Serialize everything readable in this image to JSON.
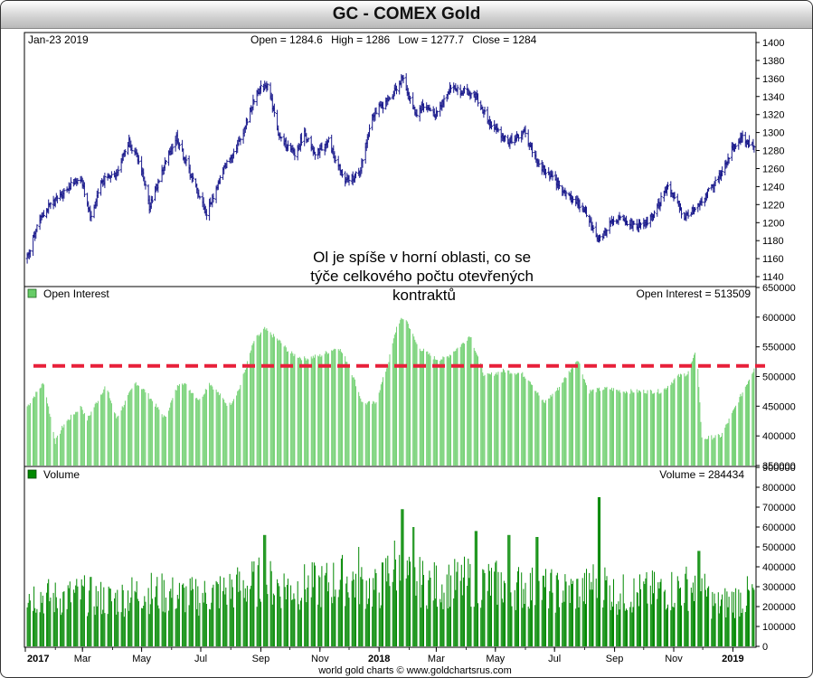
{
  "title": "GC - COMEX Gold",
  "footer": "world gold charts © www.goldchartsrus.com",
  "annotation": "Ol je spíše v horní oblasti, co se týče celkového počtu otevřených kontraktů",
  "annotation_lines": [
    "Ol je spíše v horní oblasti, co se",
    "týče celkového počtu otevřených",
    "kontraktů"
  ],
  "colors": {
    "price_bars": "#1a1a8c",
    "open_interest": "#66cc66",
    "volume": "#008800",
    "dashed_line": "#e8203a"
  },
  "chart_data": [
    {
      "type": "ohlc",
      "panel": "price",
      "date_label": "Jan-23  2019",
      "readout": {
        "open_label": "Open",
        "open": 1284.6,
        "high_label": "High",
        "high": 1286,
        "low_label": "Low",
        "low": 1277.7,
        "close_label": "Close",
        "close": 1284
      },
      "ylim": [
        1130,
        1410
      ],
      "yticks": [
        1140,
        1160,
        1180,
        1200,
        1220,
        1240,
        1260,
        1280,
        1300,
        1320,
        1340,
        1360,
        1380,
        1400
      ],
      "y_axis_side": "right",
      "grid": false,
      "x": [
        "2017-01-03",
        "2017-01-15",
        "2017-02-01",
        "2017-02-15",
        "2017-02-27",
        "2017-03-10",
        "2017-03-20",
        "2017-04-05",
        "2017-04-18",
        "2017-05-01",
        "2017-05-09",
        "2017-05-25",
        "2017-06-06",
        "2017-06-20",
        "2017-07-07",
        "2017-07-25",
        "2017-08-10",
        "2017-08-28",
        "2017-09-08",
        "2017-09-20",
        "2017-10-06",
        "2017-10-16",
        "2017-10-26",
        "2017-11-10",
        "2017-11-27",
        "2017-12-12",
        "2017-12-25",
        "2018-01-10",
        "2018-01-25",
        "2018-02-08",
        "2018-02-15",
        "2018-03-01",
        "2018-03-15",
        "2018-04-01",
        "2018-04-11",
        "2018-04-25",
        "2018-05-15",
        "2018-05-31",
        "2018-06-14",
        "2018-06-28",
        "2018-07-15",
        "2018-08-01",
        "2018-08-16",
        "2018-08-31",
        "2018-09-15",
        "2018-10-01",
        "2018-10-11",
        "2018-10-25",
        "2018-11-13",
        "2018-11-30",
        "2018-12-15",
        "2018-12-31",
        "2019-01-10",
        "2019-01-23"
      ],
      "close": [
        1160,
        1205,
        1225,
        1240,
        1250,
        1205,
        1245,
        1255,
        1290,
        1260,
        1218,
        1265,
        1295,
        1255,
        1210,
        1260,
        1290,
        1345,
        1355,
        1295,
        1275,
        1300,
        1275,
        1290,
        1245,
        1255,
        1320,
        1335,
        1360,
        1320,
        1330,
        1320,
        1350,
        1345,
        1340,
        1310,
        1290,
        1300,
        1265,
        1250,
        1230,
        1215,
        1180,
        1205,
        1200,
        1195,
        1210,
        1240,
        1205,
        1225,
        1245,
        1280,
        1295,
        1284
      ],
      "high": [
        1170,
        1212,
        1232,
        1246,
        1260,
        1214,
        1254,
        1264,
        1298,
        1270,
        1226,
        1274,
        1303,
        1262,
        1220,
        1268,
        1298,
        1357,
        1362,
        1305,
        1285,
        1306,
        1283,
        1298,
        1255,
        1262,
        1328,
        1345,
        1366,
        1330,
        1338,
        1330,
        1358,
        1352,
        1348,
        1320,
        1298,
        1307,
        1272,
        1260,
        1240,
        1225,
        1192,
        1214,
        1210,
        1202,
        1220,
        1248,
        1214,
        1232,
        1254,
        1290,
        1302,
        1286
      ],
      "low": [
        1150,
        1196,
        1216,
        1232,
        1240,
        1196,
        1236,
        1246,
        1280,
        1252,
        1208,
        1256,
        1286,
        1245,
        1200,
        1250,
        1280,
        1334,
        1344,
        1284,
        1265,
        1290,
        1265,
        1282,
        1236,
        1246,
        1310,
        1324,
        1350,
        1310,
        1320,
        1310,
        1340,
        1336,
        1330,
        1300,
        1280,
        1292,
        1256,
        1240,
        1220,
        1205,
        1162,
        1195,
        1190,
        1186,
        1200,
        1230,
        1196,
        1215,
        1236,
        1270,
        1285,
        1277.7
      ]
    },
    {
      "type": "bar",
      "panel": "open_interest",
      "label": "Open Interest",
      "readout_label": "Open Interest",
      "readout_value": 513509,
      "ylim": [
        350000,
        650000
      ],
      "yticks": [
        350000,
        400000,
        450000,
        500000,
        550000,
        600000,
        650000
      ],
      "y_axis_side": "right",
      "x": [
        "2017-01-03",
        "2017-01-20",
        "2017-02-01",
        "2017-02-10",
        "2017-02-28",
        "2017-03-05",
        "2017-03-25",
        "2017-04-05",
        "2017-04-25",
        "2017-05-05",
        "2017-05-25",
        "2017-06-10",
        "2017-06-30",
        "2017-07-10",
        "2017-07-30",
        "2017-08-10",
        "2017-08-25",
        "2017-09-05",
        "2017-09-20",
        "2017-10-01",
        "2017-10-15",
        "2017-11-01",
        "2017-11-20",
        "2017-12-01",
        "2017-12-15",
        "2017-12-28",
        "2018-01-10",
        "2018-01-20",
        "2018-01-28",
        "2018-02-10",
        "2018-02-28",
        "2018-03-10",
        "2018-03-28",
        "2018-04-05",
        "2018-04-20",
        "2018-05-10",
        "2018-05-28",
        "2018-06-05",
        "2018-06-20",
        "2018-07-05",
        "2018-07-25",
        "2018-08-05",
        "2018-08-25",
        "2018-09-10",
        "2018-10-01",
        "2018-10-20",
        "2018-11-05",
        "2018-11-15",
        "2018-11-25",
        "2018-11-30",
        "2018-12-20",
        "2019-01-10",
        "2019-01-23"
      ],
      "values": [
        450000,
        490000,
        390000,
        420000,
        450000,
        425000,
        485000,
        430000,
        490000,
        475000,
        430000,
        495000,
        460000,
        490000,
        450000,
        480000,
        560000,
        580000,
        560000,
        540000,
        530000,
        535000,
        550000,
        520000,
        455000,
        455000,
        520000,
        590000,
        600000,
        550000,
        530000,
        530000,
        555000,
        570000,
        500000,
        510000,
        505000,
        495000,
        455000,
        480000,
        530000,
        475000,
        480000,
        475000,
        475000,
        475000,
        500000,
        505000,
        545000,
        395000,
        400000,
        470000,
        513509
      ],
      "reference_line": {
        "value": 518000,
        "style": "dashed"
      }
    },
    {
      "type": "bar",
      "panel": "volume",
      "label": "Volume",
      "readout_label": "Volume",
      "readout_value": 284434,
      "ylim": [
        0,
        900000
      ],
      "yticks": [
        0,
        100000,
        200000,
        300000,
        400000,
        500000,
        600000,
        700000,
        800000,
        900000
      ],
      "y_axis_side": "right",
      "x": [
        "2017-01-03",
        "2017-02-01",
        "2017-03-01",
        "2017-04-01",
        "2017-05-01",
        "2017-06-01",
        "2017-07-01",
        "2017-08-01",
        "2017-08-31",
        "2017-10-01",
        "2017-11-01",
        "2017-12-01",
        "2017-12-31",
        "2018-01-15",
        "2018-02-01",
        "2018-03-01",
        "2018-04-01",
        "2018-05-01",
        "2018-06-01",
        "2018-07-01",
        "2018-08-01",
        "2018-08-15",
        "2018-09-01",
        "2018-10-01",
        "2018-11-01",
        "2018-11-25",
        "2018-12-15",
        "2019-01-01",
        "2019-01-23"
      ],
      "values": [
        290000,
        260000,
        280000,
        250000,
        300000,
        280000,
        270000,
        310000,
        350000,
        320000,
        330000,
        370000,
        300000,
        450000,
        360000,
        330000,
        350000,
        340000,
        320000,
        300000,
        300000,
        380000,
        280000,
        290000,
        310000,
        330000,
        220000,
        250000,
        284434
      ],
      "peaks": [
        {
          "x": "2017-09-05",
          "value": 560000
        },
        {
          "x": "2017-12-10",
          "value": 500000
        },
        {
          "x": "2018-01-25",
          "value": 690000
        },
        {
          "x": "2018-02-05",
          "value": 600000
        },
        {
          "x": "2018-04-11",
          "value": 580000
        },
        {
          "x": "2018-05-15",
          "value": 560000
        },
        {
          "x": "2018-06-13",
          "value": 550000
        },
        {
          "x": "2018-08-16",
          "value": 750000
        },
        {
          "x": "2018-11-27",
          "value": 480000
        }
      ]
    }
  ],
  "x_axis": {
    "start": "2017-01-01",
    "end": "2019-01-24",
    "ticks": [
      {
        "date": "2017-01-01",
        "label": "2017",
        "bold": true
      },
      {
        "date": "2017-03-01",
        "label": "Mar",
        "bold": false
      },
      {
        "date": "2017-05-01",
        "label": "May",
        "bold": false
      },
      {
        "date": "2017-07-01",
        "label": "Jul",
        "bold": false
      },
      {
        "date": "2017-09-01",
        "label": "Sep",
        "bold": false
      },
      {
        "date": "2017-11-01",
        "label": "Nov",
        "bold": false
      },
      {
        "date": "2018-01-01",
        "label": "2018",
        "bold": true
      },
      {
        "date": "2018-03-01",
        "label": "Mar",
        "bold": false
      },
      {
        "date": "2018-05-01",
        "label": "May",
        "bold": false
      },
      {
        "date": "2018-07-01",
        "label": "Jul",
        "bold": false
      },
      {
        "date": "2018-09-01",
        "label": "Sep",
        "bold": false
      },
      {
        "date": "2018-11-01",
        "label": "Nov",
        "bold": false
      },
      {
        "date": "2019-01-01",
        "label": "2019",
        "bold": true
      }
    ]
  }
}
